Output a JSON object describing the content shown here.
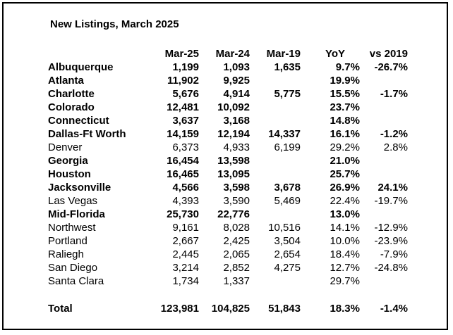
{
  "title": "New Listings, March 2025",
  "headers": [
    "",
    "Mar-25",
    "Mar-24",
    "Mar-19",
    "YoY",
    "vs 2019"
  ],
  "rows": [
    {
      "name": "Albuquerque",
      "bold": true,
      "cells": [
        "1,199",
        "1,093",
        "1,635",
        "9.7%",
        "-26.7%"
      ]
    },
    {
      "name": "Atlanta",
      "bold": true,
      "cells": [
        "11,902",
        "9,925",
        "",
        "19.9%",
        ""
      ]
    },
    {
      "name": "Charlotte",
      "bold": true,
      "cells": [
        "5,676",
        "4,914",
        "5,775",
        "15.5%",
        "-1.7%"
      ]
    },
    {
      "name": "Colorado",
      "bold": true,
      "cells": [
        "12,481",
        "10,092",
        "",
        "23.7%",
        ""
      ]
    },
    {
      "name": "Connecticut",
      "bold": true,
      "cells": [
        "3,637",
        "3,168",
        "",
        "14.8%",
        ""
      ]
    },
    {
      "name": "Dallas-Ft Worth",
      "bold": true,
      "cells": [
        "14,159",
        "12,194",
        "14,337",
        "16.1%",
        "-1.2%"
      ]
    },
    {
      "name": "Denver",
      "bold": false,
      "cells": [
        "6,373",
        "4,933",
        "6,199",
        "29.2%",
        "2.8%"
      ]
    },
    {
      "name": "Georgia",
      "bold": true,
      "cells": [
        "16,454",
        "13,598",
        "",
        "21.0%",
        ""
      ]
    },
    {
      "name": "Houston",
      "bold": true,
      "cells": [
        "16,465",
        "13,095",
        "",
        "25.7%",
        ""
      ]
    },
    {
      "name": "Jacksonville",
      "bold": true,
      "cells": [
        "4,566",
        "3,598",
        "3,678",
        "26.9%",
        "24.1%"
      ]
    },
    {
      "name": "Las Vegas",
      "bold": false,
      "cells": [
        "4,393",
        "3,590",
        "5,469",
        "22.4%",
        "-19.7%"
      ]
    },
    {
      "name": "Mid-Florida",
      "bold": true,
      "cells": [
        "25,730",
        "22,776",
        "",
        "13.0%",
        ""
      ]
    },
    {
      "name": "Northwest",
      "bold": false,
      "cells": [
        "9,161",
        "8,028",
        "10,516",
        "14.1%",
        "-12.9%"
      ]
    },
    {
      "name": "Portland",
      "bold": false,
      "cells": [
        "2,667",
        "2,425",
        "3,504",
        "10.0%",
        "-23.9%"
      ]
    },
    {
      "name": "Raliegh",
      "bold": false,
      "cells": [
        "2,445",
        "2,065",
        "2,654",
        "18.4%",
        "-7.9%"
      ]
    },
    {
      "name": "San Diego",
      "bold": false,
      "cells": [
        "3,214",
        "2,852",
        "4,275",
        "12.7%",
        "-24.8%"
      ]
    },
    {
      "name": "Santa Clara",
      "bold": false,
      "cells": [
        "1,734",
        "1,337",
        "",
        "29.7%",
        ""
      ]
    }
  ],
  "total": {
    "name": "Total",
    "bold": true,
    "cells": [
      "123,981",
      "104,825",
      "51,843",
      "18.3%",
      "-1.4%"
    ]
  }
}
